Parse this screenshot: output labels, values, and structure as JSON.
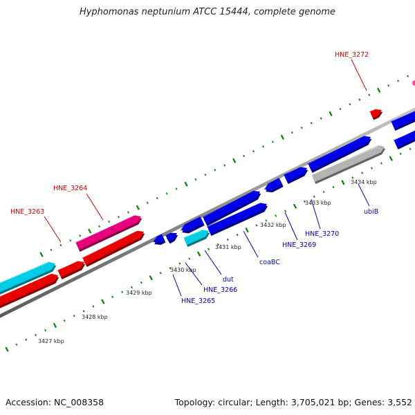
{
  "title": "Hyphomonas neptunium ATCC 15444, complete genome",
  "footer": {
    "accession": "Accession: NC_008358",
    "summary": "Topology: circular; Length: 3,705,021 bp; Genes: 3,552"
  },
  "colors": {
    "blue_gene": "#0000e6",
    "red_gene": "#e60000",
    "pink_gene": "#e6007a",
    "cyan_gene": "#00cce6",
    "gray_gene": "#b4b4b4",
    "backbone": "#8c8c8c",
    "tick": "#008000",
    "label_red": "#cc0000",
    "label_blue": "#0000b3"
  },
  "scale_labels": [
    {
      "text": "3427 kbp"
    },
    {
      "text": "3428 kbp"
    },
    {
      "text": "3429 kbp"
    },
    {
      "text": "3430 kbp"
    },
    {
      "text": "3431 kbp"
    },
    {
      "text": "3432 kbp"
    },
    {
      "text": "3433 kbp"
    },
    {
      "text": "3434 kbp"
    }
  ],
  "gene_labels": [
    {
      "text": "HNE_3263",
      "color": "red"
    },
    {
      "text": "HNE_3264",
      "color": "red"
    },
    {
      "text": "HNE_3272",
      "color": "red"
    },
    {
      "text": "HNE_3265",
      "color": "blue"
    },
    {
      "text": "HNE_3266",
      "color": "blue"
    },
    {
      "text": "dut",
      "color": "blue"
    },
    {
      "text": "coaBC",
      "color": "blue"
    },
    {
      "text": "HNE_3269",
      "color": "blue"
    },
    {
      "text": "HNE_3270",
      "color": "blue"
    },
    {
      "text": "ubiB",
      "color": "blue"
    }
  ]
}
